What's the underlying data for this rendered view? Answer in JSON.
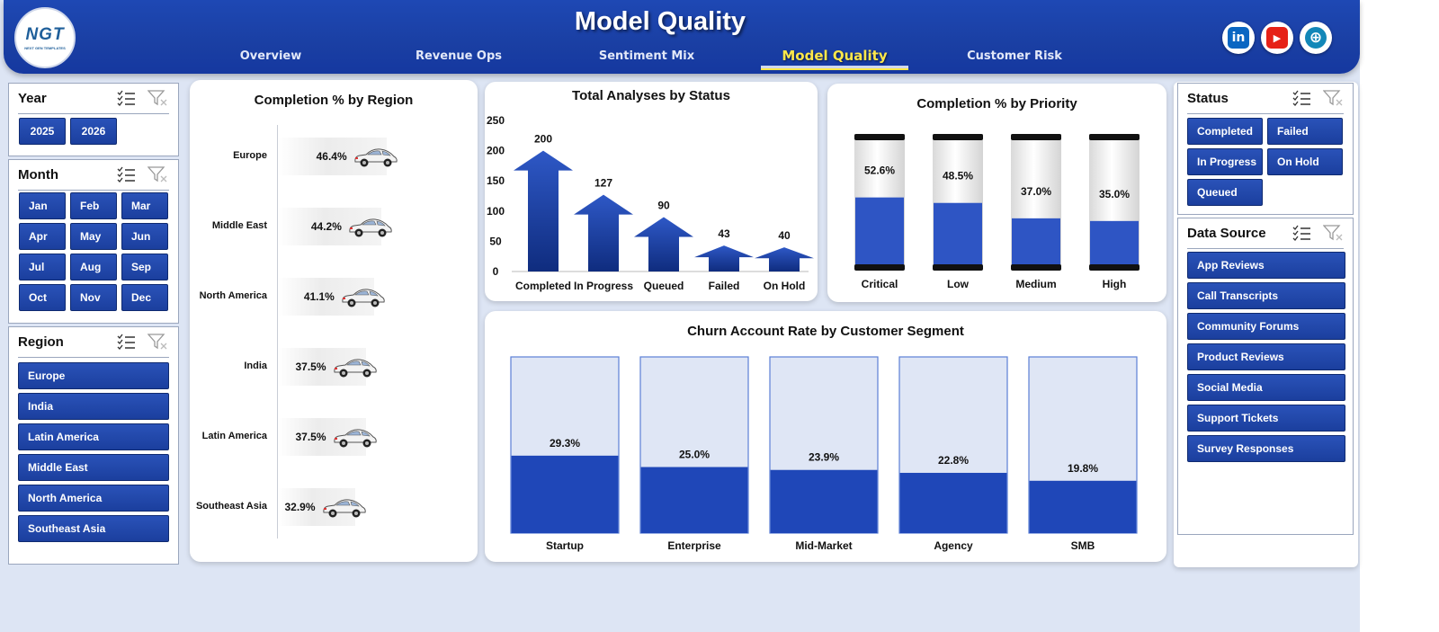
{
  "header": {
    "title": "Model Quality",
    "logo_text": "NGT",
    "logo_sub": "NEXT GEN TEMPLATES",
    "tabs": [
      {
        "label": "Overview",
        "active": false
      },
      {
        "label": "Revenue Ops",
        "active": false
      },
      {
        "label": "Sentiment Mix",
        "active": false
      },
      {
        "label": "Model Quality",
        "active": true
      },
      {
        "label": "Customer Risk",
        "active": false
      }
    ],
    "social": [
      {
        "name": "linkedin-icon",
        "glyph": "in",
        "color": "#0a66c2"
      },
      {
        "name": "youtube-icon",
        "glyph": "▶",
        "color": "#e62117"
      },
      {
        "name": "globe-icon",
        "glyph": "⊕",
        "color": "#1287b8"
      }
    ]
  },
  "slicers": {
    "year": {
      "title": "Year",
      "items": [
        "2025",
        "2026"
      ]
    },
    "month": {
      "title": "Month",
      "items": [
        "Jan",
        "Feb",
        "Mar",
        "Apr",
        "May",
        "Jun",
        "Jul",
        "Aug",
        "Sep",
        "Oct",
        "Nov",
        "Dec"
      ]
    },
    "region": {
      "title": "Region",
      "items": [
        "Europe",
        "India",
        "Latin America",
        "Middle East",
        "North America",
        "Southeast Asia"
      ]
    },
    "status": {
      "title": "Status",
      "items": [
        "Completed",
        "Failed",
        "In Progress",
        "On Hold",
        "Queued"
      ]
    },
    "data_source": {
      "title": "Data Source",
      "items": [
        "App Reviews",
        "Call Transcripts",
        "Community Forums",
        "Product Reviews",
        "Social Media",
        "Support Tickets",
        "Survey Responses"
      ]
    }
  },
  "chart_data": [
    {
      "id": "region",
      "type": "bar",
      "title": "Completion % by Region",
      "categories": [
        "Europe",
        "Middle East",
        "North America",
        "India",
        "Latin America",
        "Southeast Asia"
      ],
      "values": [
        46.4,
        44.2,
        41.1,
        37.5,
        37.5,
        32.9
      ],
      "labels": [
        "46.4%",
        "44.2%",
        "41.1%",
        "37.5%",
        "37.5%",
        "32.9%"
      ],
      "unit": "%"
    },
    {
      "id": "status",
      "type": "bar",
      "title": "Total Analyses  by Status",
      "categories": [
        "Completed",
        "In Progress",
        "Queued",
        "Failed",
        "On Hold"
      ],
      "values": [
        200,
        127,
        90,
        43,
        40
      ],
      "yticks": [
        "0",
        "50",
        "100",
        "150",
        "200",
        "250"
      ],
      "ylim": [
        0,
        250
      ]
    },
    {
      "id": "priority",
      "type": "bar",
      "title": "Completion % by Priority",
      "categories": [
        "Critical",
        "Low",
        "Medium",
        "High"
      ],
      "values": [
        52.6,
        48.5,
        37.0,
        35.0
      ],
      "labels": [
        "52.6%",
        "48.5%",
        "37.0%",
        "35.0%"
      ],
      "ylim": [
        0,
        100
      ]
    },
    {
      "id": "segment",
      "type": "bar",
      "title": "Churn  Account Rate by Customer Segment",
      "categories": [
        "Startup",
        "Enterprise",
        "Mid-Market",
        "Agency",
        "SMB"
      ],
      "values": [
        29.3,
        25.0,
        23.9,
        22.8,
        19.8
      ],
      "labels": [
        "29.3%",
        "25.0%",
        "23.9%",
        "22.8%",
        "19.8%"
      ],
      "ylim": [
        0,
        100
      ]
    }
  ],
  "colors": {
    "brand_blue": "#1b3f9e",
    "bar_blue": "#2e55c4",
    "track_light": "#dfe6f5",
    "active_tab": "#ffe84a"
  }
}
